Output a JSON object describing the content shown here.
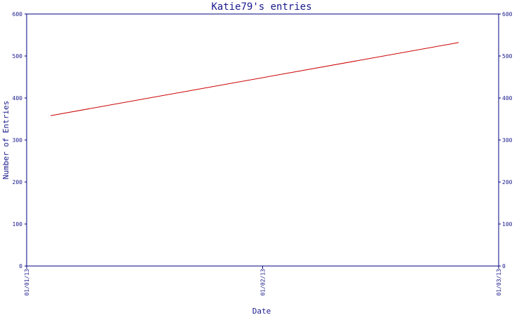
{
  "chart_data": {
    "type": "line",
    "title": "Katie79's entries",
    "xlabel": "Date",
    "ylabel": "Number of Entries",
    "x_ticks": [
      "01/01/13",
      "01/02/13",
      "01/03/13"
    ],
    "y_ticks": [
      0,
      100,
      200,
      300,
      400,
      500,
      600
    ],
    "ylim": [
      0,
      600
    ],
    "xlim": [
      "2013-01-01",
      "2013-03-01"
    ],
    "grid": false,
    "colors": {
      "axis": "#000080",
      "text": "#1a1a8c",
      "series": "#cc0000"
    },
    "series": [
      {
        "x": [
          "2013-01-04",
          "2013-02-24"
        ],
        "values": [
          358,
          532
        ]
      }
    ]
  }
}
